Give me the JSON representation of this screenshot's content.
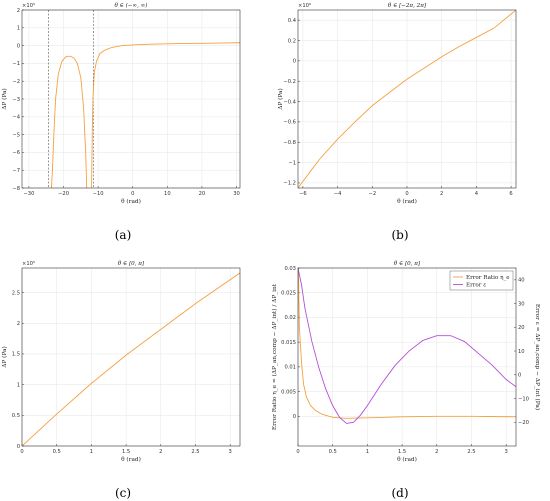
{
  "chart_data": [
    {
      "id": "a",
      "type": "line",
      "title": "θ ∈ (−∞, ∞)",
      "xlabel": "θ (rad)",
      "ylabel": "ΔP (Pa)",
      "yexp": "×10⁵",
      "xlim": [
        -32,
        31
      ],
      "ylim": [
        -8,
        2
      ],
      "xticks": [
        -30,
        -20,
        -10,
        0,
        10,
        20,
        30
      ],
      "yticks": [
        -8,
        -7,
        -6,
        -5,
        -4,
        -3,
        -2,
        -1,
        0,
        1,
        2
      ],
      "grid": true,
      "asymptotes": [
        -24.3,
        -11.4
      ],
      "series": [
        {
          "color": "#f5a040",
          "x": [
            -13.3,
            -13.6,
            -14.2,
            -15,
            -16,
            -17,
            -18,
            -18.7,
            -19.5,
            -20.5,
            -21.5,
            -22.3,
            -22.8,
            -23.2,
            -23.5
          ],
          "y": [
            -8,
            -6,
            -3.5,
            -1.8,
            -1.0,
            -0.7,
            -0.6,
            -0.6,
            -0.65,
            -0.9,
            -1.6,
            -3,
            -5,
            -7,
            -8
          ]
        },
        {
          "color": "#f5a040",
          "x": [
            -11.9,
            -11.7,
            -11.5,
            -11.1,
            -10.5,
            -9.5,
            -8,
            -6,
            -3,
            0,
            5,
            10,
            15,
            20,
            25,
            31
          ],
          "y": [
            -8,
            -5,
            -3,
            -1.5,
            -0.9,
            -0.45,
            -0.25,
            -0.1,
            0.0,
            0.04,
            0.08,
            0.1,
            0.12,
            0.13,
            0.14,
            0.16
          ]
        }
      ]
    },
    {
      "id": "b",
      "type": "line",
      "title": "θ ∈ [−2π, 2π]",
      "xlabel": "θ (rad)",
      "ylabel": "ΔP (Pa)",
      "yexp": "×10⁶",
      "xlim": [
        -6.283,
        6.283
      ],
      "ylim": [
        -1.25,
        0.5
      ],
      "xticks": [
        -6,
        -4,
        -2,
        0,
        2,
        4,
        6
      ],
      "yticks": [
        -1.2,
        -1,
        -0.8,
        -0.6,
        -0.4,
        -0.2,
        0,
        0.2,
        0.4
      ],
      "grid": true,
      "series": [
        {
          "color": "#f5a040",
          "x": [
            -6.283,
            -5.5,
            -5,
            -4,
            -3,
            -2,
            -1,
            0,
            1,
            2,
            3,
            4,
            5,
            6.283
          ],
          "y": [
            -1.25,
            -1.07,
            -0.96,
            -0.77,
            -0.6,
            -0.44,
            -0.31,
            -0.18,
            -0.07,
            0.04,
            0.14,
            0.23,
            0.32,
            0.5
          ]
        }
      ]
    },
    {
      "id": "c",
      "type": "line",
      "title": "θ ∈ [0, π]",
      "xlabel": "θ (rad)",
      "ylabel": "ΔP (Pa)",
      "yexp": "×10⁵",
      "xlim": [
        0,
        3.1416
      ],
      "ylim": [
        0,
        2.9
      ],
      "xticks": [
        0,
        0.5,
        1,
        1.5,
        2,
        2.5,
        3
      ],
      "yticks": [
        0,
        0.5,
        1,
        1.5,
        2,
        2.5
      ],
      "grid": true,
      "series": [
        {
          "color": "#f5a040",
          "x": [
            0,
            0.5,
            1,
            1.5,
            2,
            2.5,
            3.1416
          ],
          "y": [
            0,
            0.52,
            1.02,
            1.48,
            1.9,
            2.32,
            2.82
          ]
        }
      ]
    },
    {
      "id": "d",
      "type": "line",
      "title": "θ ∈ [0, π]",
      "xlabel": "θ (rad)",
      "ylabel": "Error Ratio η_e = (ΔP_an,comp − ΔP_int) / ΔP_int",
      "y2label": "Error ε = ΔP_an,comp − ΔP_int (Pa)",
      "xlim": [
        0,
        3.1416
      ],
      "ylim": [
        -0.006,
        0.03
      ],
      "y2lim": [
        -30,
        45
      ],
      "xticks": [
        0,
        0.5,
        1,
        1.5,
        2,
        2.5,
        3
      ],
      "yticks": [
        0,
        0.005,
        0.01,
        0.015,
        0.02,
        0.025,
        0.03
      ],
      "y2ticks": [
        -20,
        -10,
        0,
        10,
        20,
        30,
        40
      ],
      "grid": true,
      "legend": "top-right",
      "series": [
        {
          "name": "Error Ratio η_e",
          "color": "#f5a040",
          "axis": "left",
          "x": [
            0.005,
            0.02,
            0.05,
            0.08,
            0.12,
            0.18,
            0.25,
            0.35,
            0.5,
            0.7,
            1.0,
            1.5,
            2.0,
            2.5,
            3.1416
          ],
          "y": [
            0.03,
            0.018,
            0.011,
            0.0065,
            0.004,
            0.0022,
            0.0012,
            0.0004,
            -0.0002,
            -0.0004,
            -0.0003,
            -0.0001,
            0.0,
            0.0,
            -0.0001
          ]
        },
        {
          "name": "Error ε",
          "color": "#b24fd8",
          "axis": "right",
          "x": [
            0.0,
            0.05,
            0.1,
            0.2,
            0.3,
            0.4,
            0.5,
            0.6,
            0.7,
            0.8,
            0.9,
            1.0,
            1.2,
            1.4,
            1.6,
            1.8,
            2.0,
            2.2,
            2.4,
            2.6,
            2.8,
            3.0,
            3.1416
          ],
          "y": [
            45,
            38,
            28,
            14,
            3,
            -6,
            -13,
            -18,
            -20.5,
            -20,
            -17,
            -13,
            -4,
            4,
            10,
            14.5,
            16.5,
            16.5,
            14,
            9,
            4,
            -2,
            -5
          ]
        }
      ]
    }
  ],
  "sublabels": [
    "(a)",
    "(b)",
    "(c)",
    "(d)"
  ]
}
